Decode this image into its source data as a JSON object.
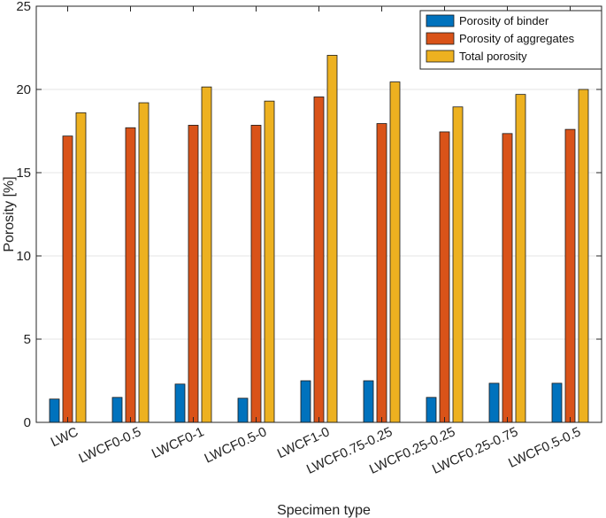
{
  "chart_data": {
    "type": "bar",
    "title": "",
    "xlabel": "Specimen type",
    "ylabel": "Porosity [%]",
    "ylim": [
      0,
      25
    ],
    "yticks": [
      0,
      5,
      10,
      15,
      20,
      25
    ],
    "grid": "horizontal",
    "legend_position": "top-right",
    "categories": [
      "LWC",
      "LWCF0-0.5",
      "LWCF0-1",
      "LWCF0.5-0",
      "LWCF1-0",
      "LWCF0.75-0.25",
      "LWCF0.25-0.25",
      "LWCF0.25-0.75",
      "LWCF0.5-0.5"
    ],
    "series": [
      {
        "name": "Porosity of binder",
        "color": "#0072BD",
        "values": [
          1.4,
          1.5,
          2.3,
          1.45,
          2.5,
          2.5,
          1.5,
          2.35,
          2.35
        ]
      },
      {
        "name": "Porosity of aggregates",
        "color": "#D95319",
        "values": [
          17.2,
          17.7,
          17.85,
          17.85,
          19.55,
          17.95,
          17.45,
          17.35,
          17.6
        ]
      },
      {
        "name": "Total porosity",
        "color": "#EDB120",
        "values": [
          18.6,
          19.2,
          20.15,
          19.3,
          22.05,
          20.45,
          18.95,
          19.7,
          20.0
        ]
      }
    ]
  }
}
